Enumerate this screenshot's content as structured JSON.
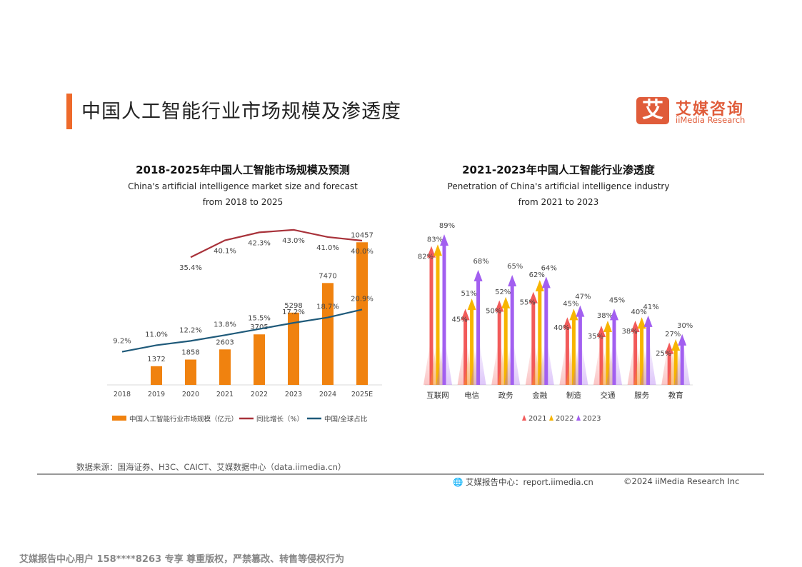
{
  "header": {
    "title": "中国人工智能行业市场规模及渗透度",
    "logo_mark": "艾",
    "logo_cn": "艾媒咨询",
    "logo_en": "iiMedia Research"
  },
  "chart_data": [
    {
      "type": "bar",
      "title": "2018-2025年中国人工智能市场规模及预测",
      "subtitle_1": "China's artificial intelligence market size and forecast",
      "subtitle_2": "from 2018 to 2025",
      "categories": [
        "2018",
        "2019",
        "2020",
        "2021",
        "2022",
        "2023",
        "2024",
        "2025E"
      ],
      "series": [
        {
          "name": "中国人工智能行业市场规模（亿元）",
          "kind": "bar",
          "color": "#f0820f",
          "values": [
            null,
            1372,
            1858,
            2603,
            3705,
            5298,
            7470,
            10457
          ],
          "labels": [
            "",
            "1372",
            "1858",
            "2603",
            "3705",
            "5298",
            "7470",
            "10457"
          ]
        },
        {
          "name": "同比增长（%）",
          "kind": "line",
          "color": "#a8323a",
          "values": [
            null,
            null,
            35.4,
            40.1,
            42.3,
            43.0,
            41.0,
            40.0
          ],
          "labels": [
            "",
            "",
            "35.4%",
            "40.1%",
            "42.3%",
            "43.0%",
            "41.0%",
            "40.0%"
          ]
        },
        {
          "name": "中国/全球占比",
          "kind": "line",
          "color": "#1f5a7a",
          "values": [
            9.2,
            11.0,
            12.2,
            13.8,
            15.5,
            17.2,
            18.7,
            20.9
          ],
          "labels": [
            "9.2%",
            "11.0%",
            "12.2%",
            "13.8%",
            "15.5%",
            "17.2%",
            "18.7%",
            "20.9%"
          ]
        }
      ]
    },
    {
      "type": "bar",
      "title": "2021-2023年中国人工智能行业渗透度",
      "subtitle_1": "Penetration of China's artificial intelligence industry",
      "subtitle_2": "from 2021 to 2023",
      "categories": [
        "互联网",
        "电信",
        "政务",
        "金融",
        "制造",
        "交通",
        "服务",
        "教育"
      ],
      "series": [
        {
          "name": "2021",
          "color": "#f25a5a",
          "values": [
            82,
            45,
            50,
            55,
            40,
            35,
            38,
            25
          ]
        },
        {
          "name": "2022",
          "color": "#f7b500",
          "values": [
            83,
            51,
            52,
            62,
            45,
            38,
            40,
            27
          ]
        },
        {
          "name": "2023",
          "color": "#a25ff0",
          "values": [
            89,
            68,
            65,
            64,
            47,
            45,
            41,
            30
          ]
        }
      ]
    }
  ],
  "footer": {
    "source": "数据来源：国海证券、H3C、CAICT、艾媒数据中心（data.iimedia.cn）",
    "site": "艾媒报告中心：report.iimedia.cn",
    "copyright": "©2024  iiMedia Research  Inc",
    "watermark": "艾媒报告中心用户 158****8263 专享 尊重版权，严禁篡改、转售等侵权行为"
  }
}
